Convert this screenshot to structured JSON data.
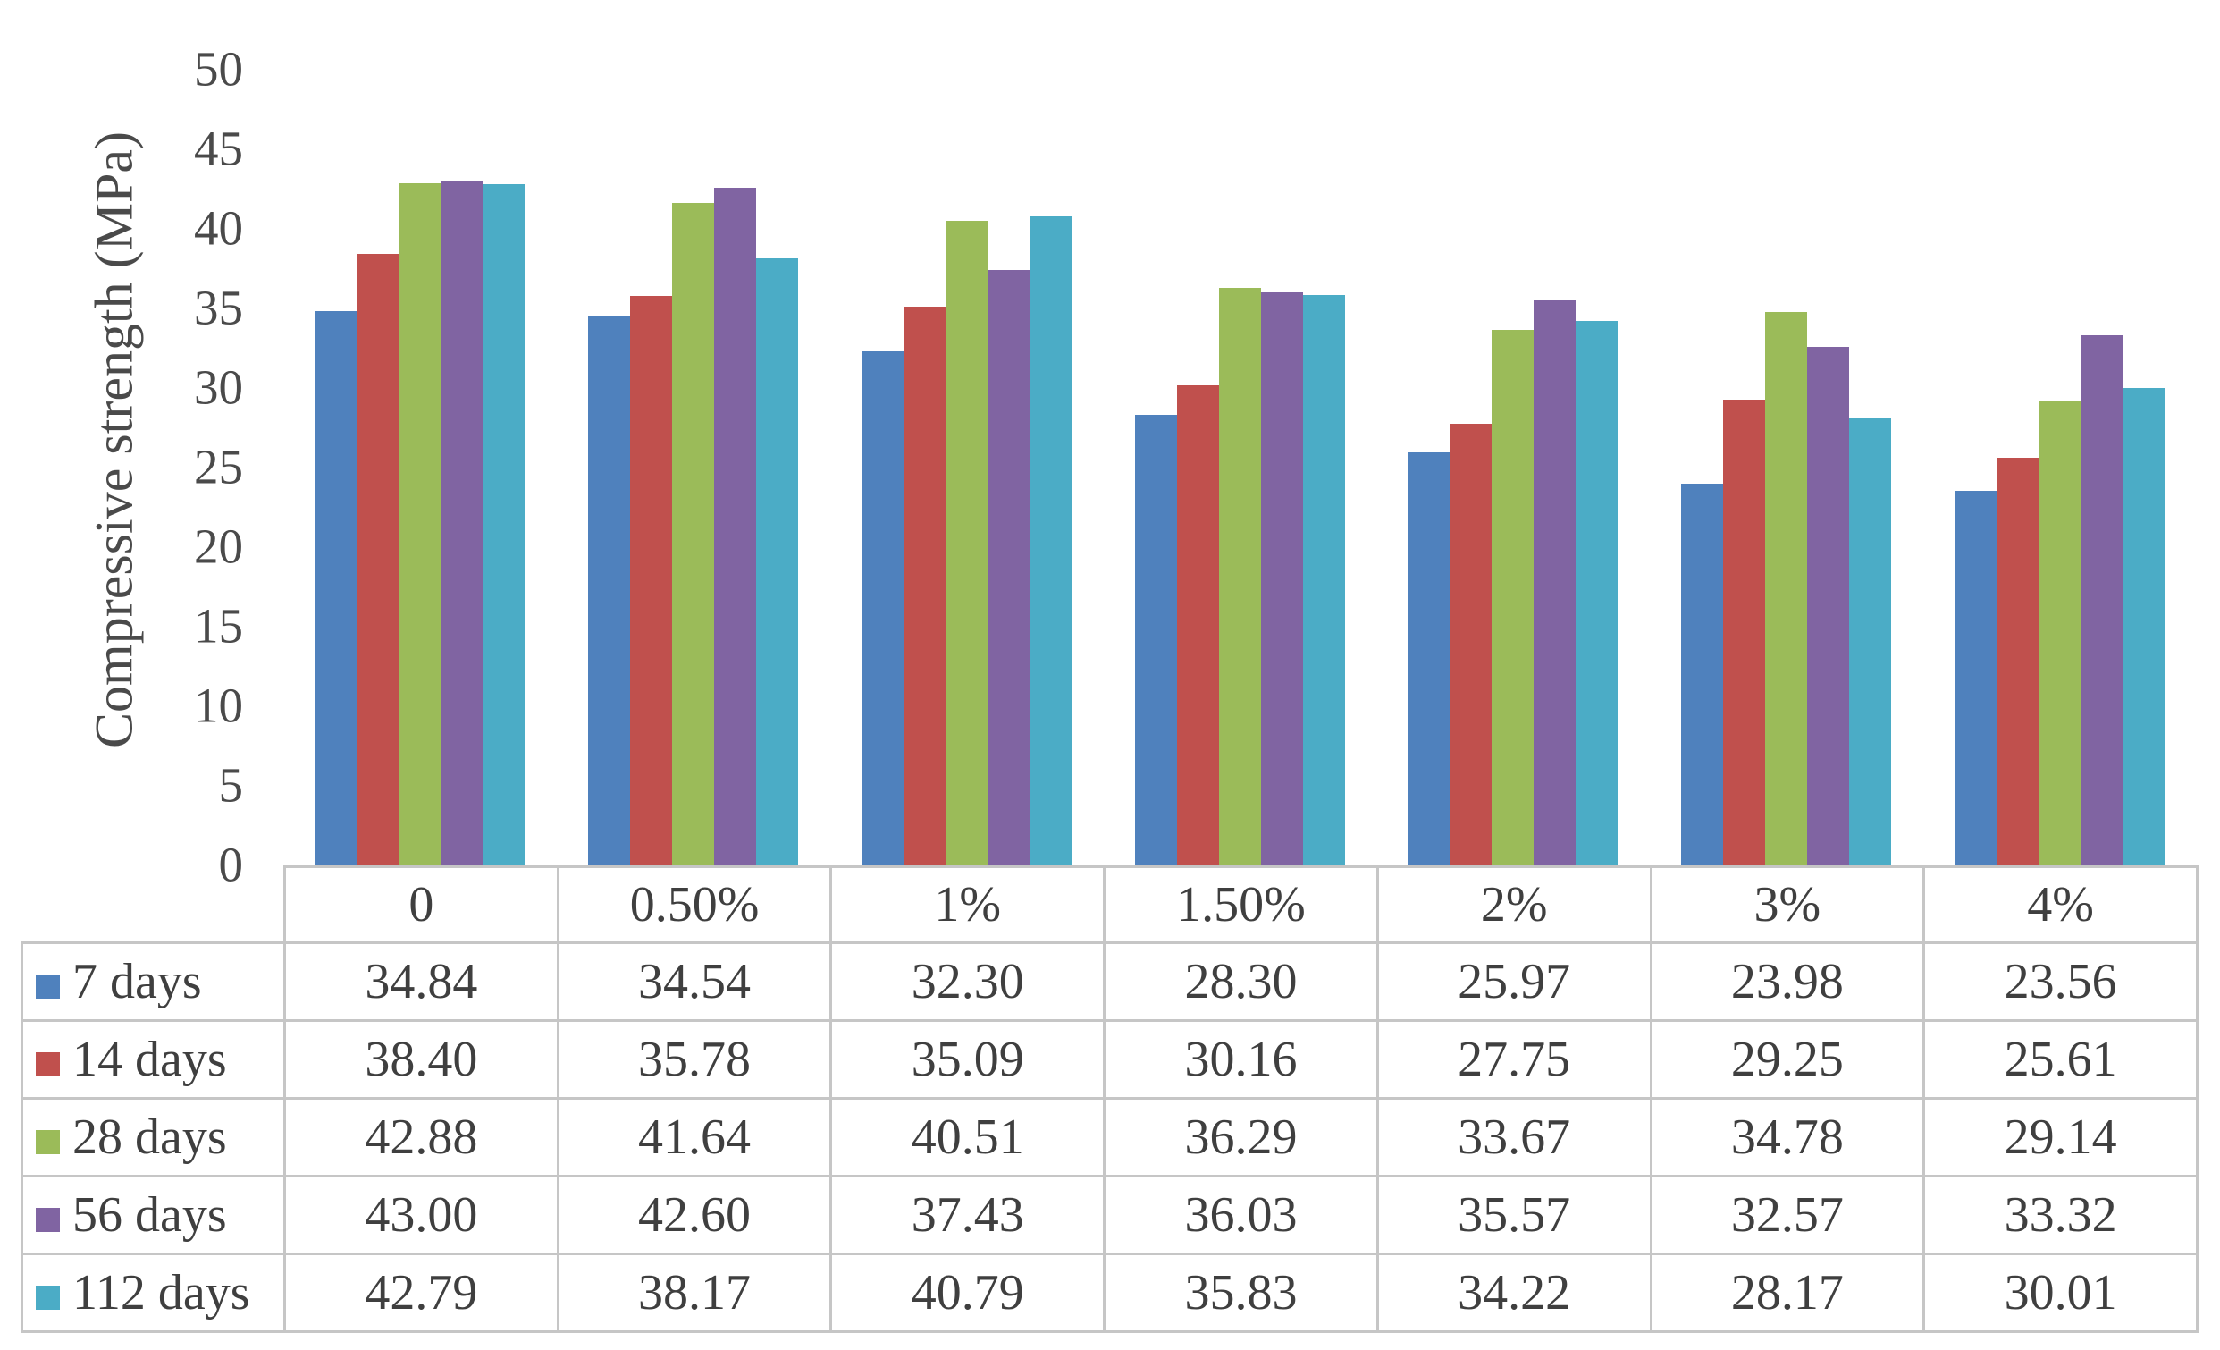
{
  "chart_data": {
    "type": "bar",
    "title": "",
    "xlabel": "",
    "ylabel": "Compressive strength (MPa)",
    "ylim": [
      0,
      50
    ],
    "yticks": [
      0,
      5,
      10,
      15,
      20,
      25,
      30,
      35,
      40,
      45,
      50
    ],
    "grid": false,
    "legend_position": "left column of data table below chart",
    "value_decimals": 2,
    "categories": [
      "0",
      "0.50%",
      "1%",
      "1.50%",
      "2%",
      "3%",
      "4%"
    ],
    "series": [
      {
        "name": "7 days",
        "color": "#4F81BD",
        "values": [
          34.84,
          34.54,
          32.3,
          28.3,
          25.97,
          23.98,
          23.56
        ]
      },
      {
        "name": "14 days",
        "color": "#C0504D",
        "values": [
          38.4,
          35.78,
          35.09,
          30.16,
          27.75,
          29.25,
          25.61
        ]
      },
      {
        "name": "28 days",
        "color": "#9BBB59",
        "values": [
          42.88,
          41.64,
          40.51,
          36.29,
          33.67,
          34.78,
          29.14
        ]
      },
      {
        "name": "56 days",
        "color": "#8064A2",
        "values": [
          43.0,
          42.6,
          37.43,
          36.03,
          35.57,
          32.57,
          33.32
        ]
      },
      {
        "name": "112 days",
        "color": "#4BACC6",
        "values": [
          42.79,
          38.17,
          40.79,
          35.83,
          34.22,
          28.17,
          30.01
        ]
      }
    ]
  }
}
